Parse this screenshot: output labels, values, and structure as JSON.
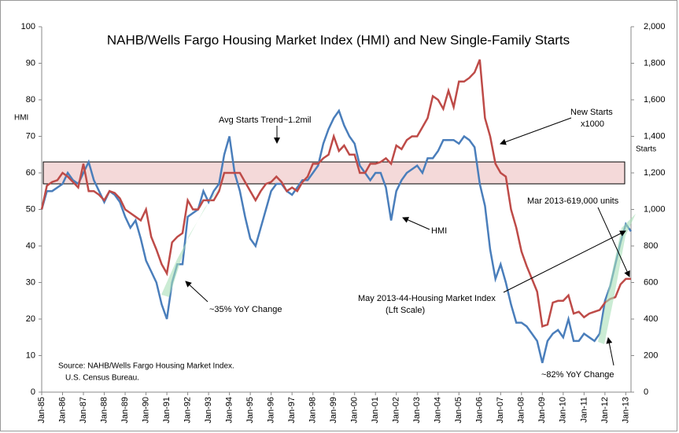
{
  "chart_data": {
    "type": "line",
    "title": "NAHB/Wells Fargo Housing Market Index (HMI) and New Single-Family Starts",
    "y_label": "HMI",
    "y2_label": "Starts",
    "categories": [
      "Jan-85",
      null,
      null,
      null,
      "Jan-86",
      null,
      null,
      null,
      "Jan-87",
      null,
      null,
      null,
      "Jan-88",
      null,
      null,
      null,
      "Jan-89",
      null,
      null,
      null,
      "Jan-90",
      null,
      null,
      null,
      "Jan-91",
      null,
      null,
      null,
      "Jan-92",
      null,
      null,
      null,
      "Jan-93",
      null,
      null,
      null,
      "Jan-94",
      null,
      null,
      null,
      "Jan-95",
      null,
      null,
      null,
      "Jan-96",
      null,
      null,
      null,
      "Jan-97",
      null,
      null,
      null,
      "Jan-98",
      null,
      null,
      null,
      "Jan-99",
      null,
      null,
      null,
      "Jan-00",
      null,
      null,
      null,
      "Jan-01",
      null,
      null,
      null,
      "Jan-02",
      null,
      null,
      null,
      "Jan-03",
      null,
      null,
      null,
      "Jan-04",
      null,
      null,
      null,
      "Jan-05",
      null,
      null,
      null,
      "Jan-06",
      null,
      null,
      null,
      "Jan-07",
      null,
      null,
      null,
      "Jan-08",
      null,
      null,
      null,
      "Jan-09",
      null,
      null,
      null,
      "Jan-10",
      null,
      null,
      null,
      "Jan-11",
      null,
      null,
      null,
      "Jan-12",
      null,
      null,
      null,
      "Jan-13",
      null
    ],
    "series": [
      {
        "name": "HMI",
        "color": "#4a7ebb",
        "values": [
          50,
          55,
          55,
          56,
          57,
          60,
          58,
          57,
          60,
          63,
          58,
          55,
          52,
          55,
          54,
          52,
          48,
          45,
          47,
          42,
          36,
          33,
          30,
          24,
          20,
          30,
          35,
          35,
          48,
          49,
          50,
          55,
          52,
          55,
          57,
          65,
          70,
          60,
          55,
          48,
          42,
          40,
          45,
          50,
          55,
          57,
          57,
          55,
          54,
          56,
          58,
          58,
          60,
          62,
          68,
          72,
          75,
          77,
          73,
          70,
          68,
          62,
          60,
          58,
          60,
          60,
          56,
          47,
          55,
          58,
          60,
          61,
          62,
          60,
          64,
          64,
          66,
          69,
          69,
          69,
          68,
          70,
          69,
          67,
          57,
          51,
          39,
          31,
          35,
          30,
          24,
          19,
          19,
          18,
          16,
          14,
          8,
          14,
          16,
          17,
          15,
          20,
          14,
          14,
          16,
          15,
          14,
          16,
          25,
          29,
          35,
          41,
          46,
          44
        ]
      },
      {
        "name": "New Starts",
        "color": "#be4b48",
        "axis": "y2",
        "values": [
          1000,
          1130,
          1150,
          1160,
          1200,
          1180,
          1150,
          1120,
          1250,
          1100,
          1100,
          1080,
          1050,
          1100,
          1090,
          1060,
          1000,
          980,
          960,
          940,
          1000,
          850,
          780,
          700,
          650,
          820,
          850,
          870,
          1050,
          1000,
          1000,
          1050,
          1050,
          1050,
          1100,
          1200,
          1200,
          1200,
          1200,
          1150,
          1100,
          1050,
          1100,
          1140,
          1150,
          1180,
          1150,
          1100,
          1120,
          1100,
          1150,
          1180,
          1250,
          1250,
          1280,
          1300,
          1400,
          1320,
          1350,
          1300,
          1300,
          1200,
          1200,
          1250,
          1250,
          1260,
          1280,
          1250,
          1350,
          1330,
          1380,
          1400,
          1400,
          1450,
          1500,
          1620,
          1600,
          1550,
          1650,
          1560,
          1700,
          1700,
          1720,
          1750,
          1820,
          1500,
          1400,
          1250,
          1200,
          1180,
          1000,
          900,
          770,
          690,
          620,
          550,
          360,
          370,
          490,
          500,
          500,
          530,
          430,
          440,
          410,
          430,
          440,
          450,
          490,
          510,
          520,
          590,
          620,
          620
        ]
      }
    ],
    "trend_band": [
      57,
      63
    ],
    "ylim": [
      0,
      100
    ],
    "yticks": [
      0,
      10,
      20,
      30,
      40,
      50,
      60,
      70,
      80,
      90,
      100
    ],
    "y2lim": [
      0,
      2000
    ],
    "y2ticks": [
      0,
      200,
      400,
      600,
      800,
      {
        "value": 1000,
        "label": "1,000"
      },
      {
        "value": 1200,
        "label": "1,200"
      },
      {
        "value": 1400,
        "label": "1,400"
      },
      {
        "value": 1600,
        "label": "1,600"
      },
      {
        "value": 1800,
        "label": "1,800"
      },
      {
        "value": 2000,
        "label": "2,000"
      }
    ],
    "annotations": [
      "Avg Starts Trend~1.2mil",
      "New Starts",
      "x1000",
      "HMI",
      "Mar 2013-619,000 units",
      "May 2013-44-Housing Market Index",
      "(Lft Scale)",
      "~35% YoY Change",
      "~82% YoY Change",
      "Source: NAHB/Wells Fargo Housing Market Index.",
      "U.S. Census Bureau."
    ]
  }
}
